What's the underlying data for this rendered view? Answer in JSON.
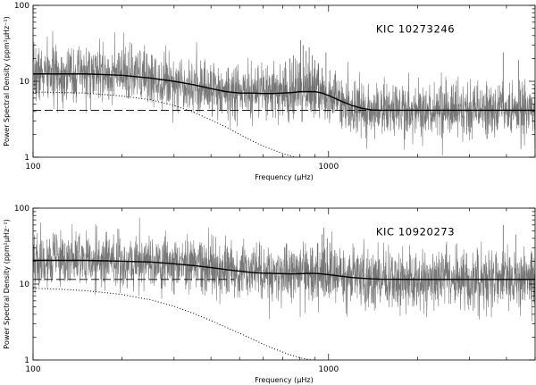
{
  "chart_data": [
    {
      "type": "line",
      "annotation": "KIC 10273246",
      "title": "",
      "xlabel": "Frequency (μHz)",
      "ylabel": "Power Spectral Density (ppm²μHz⁻¹)",
      "xscale": "log",
      "yscale": "log",
      "xlim": [
        100,
        5000
      ],
      "ylim": [
        1,
        100
      ],
      "x_ticks": [
        "100",
        "1000"
      ],
      "y_ticks": [
        "1",
        "10",
        "100"
      ],
      "annotation_position": "top-right",
      "grid": false,
      "legend": "none",
      "noise_seed": 7,
      "series": [
        {
          "style": "observed-spectrum",
          "color": "#777777",
          "x": [
            100,
            150,
            200,
            250,
            300,
            350,
            400,
            450,
            500,
            550,
            600,
            650,
            700,
            750,
            800,
            850,
            900,
            950,
            1000,
            1100,
            1200,
            1300,
            1400,
            1500,
            1700,
            2000,
            2500,
            3000,
            3500,
            4000,
            4500,
            5000
          ],
          "y": [
            12.5,
            12.5,
            12.0,
            11.0,
            10.0,
            9.0,
            8.0,
            7.3,
            7.0,
            7.0,
            6.9,
            6.9,
            7.0,
            7.1,
            7.3,
            7.3,
            7.3,
            7.0,
            6.5,
            5.5,
            4.8,
            4.4,
            4.2,
            4.15,
            4.15,
            4.15,
            4.15,
            4.15,
            4.15,
            4.15,
            4.15,
            4.15
          ]
        },
        {
          "style": "fit",
          "color": "#000000",
          "x": [
            100,
            150,
            200,
            250,
            300,
            350,
            400,
            450,
            500,
            550,
            600,
            650,
            700,
            750,
            800,
            850,
            900,
            950,
            1000,
            1100,
            1200,
            1300,
            1400,
            1500,
            1700,
            2000,
            2500,
            3000,
            3500,
            4000,
            4500,
            5000
          ],
          "y": [
            12.5,
            12.5,
            12.0,
            11.0,
            10.0,
            9.0,
            8.0,
            7.3,
            7.0,
            7.0,
            6.9,
            6.9,
            7.0,
            7.1,
            7.3,
            7.3,
            7.3,
            7.0,
            6.5,
            5.5,
            4.8,
            4.4,
            4.2,
            4.15,
            4.15,
            4.15,
            4.15,
            4.15,
            4.15,
            4.15,
            4.15,
            4.15
          ]
        },
        {
          "style": "white-noise",
          "dash": "dashed",
          "color": "#000000",
          "x": [
            100,
            5000
          ],
          "y": [
            4.15,
            4.15
          ]
        },
        {
          "style": "granulation",
          "dash": "dotted",
          "color": "#000000",
          "x": [
            100,
            120,
            150,
            200,
            250,
            300,
            350,
            400,
            450,
            500,
            550,
            600,
            650,
            700,
            750,
            790
          ],
          "y": [
            7.2,
            7.15,
            7.0,
            6.4,
            5.7,
            4.8,
            3.9,
            3.1,
            2.5,
            2.0,
            1.65,
            1.4,
            1.25,
            1.12,
            1.03,
            0.98
          ]
        }
      ],
      "peaks": {
        "x": [
          715,
          740,
          760,
          790,
          805,
          820,
          840,
          860,
          880,
          900,
          925,
          950,
          980,
          1010,
          1050,
          3900,
          4400
        ],
        "y": [
          18,
          20,
          22,
          17,
          35,
          30,
          25,
          28,
          22,
          19,
          17,
          15,
          24,
          14,
          12,
          24,
          19
        ]
      }
    },
    {
      "type": "line",
      "annotation": "KIC 10920273",
      "title": "",
      "xlabel": "Frequency (μHz)",
      "ylabel": "Power Spectral Density (ppm²μHz⁻¹)",
      "xscale": "log",
      "yscale": "log",
      "xlim": [
        100,
        5000
      ],
      "ylim": [
        1,
        100
      ],
      "x_ticks": [
        "100",
        "1000"
      ],
      "y_ticks": [
        "1",
        "10",
        "100"
      ],
      "annotation_position": "top-right",
      "grid": false,
      "legend": "none",
      "noise_seed": 19,
      "series": [
        {
          "style": "observed-spectrum",
          "color": "#777777",
          "x": [
            100,
            150,
            200,
            250,
            300,
            350,
            400,
            450,
            500,
            550,
            600,
            650,
            700,
            750,
            800,
            850,
            900,
            950,
            1000,
            1100,
            1200,
            1300,
            1400,
            1500,
            1700,
            2000,
            2500,
            3000,
            3500,
            4000,
            4500,
            5000
          ],
          "y": [
            20.5,
            20.5,
            20.0,
            19.5,
            18.5,
            17.5,
            16.5,
            15.5,
            14.8,
            14.2,
            13.9,
            13.8,
            13.7,
            13.6,
            13.7,
            13.8,
            13.8,
            13.6,
            13.3,
            12.7,
            12.2,
            11.9,
            11.7,
            11.6,
            11.55,
            11.5,
            11.5,
            11.5,
            11.5,
            11.5,
            11.5,
            11.5
          ]
        },
        {
          "style": "fit",
          "color": "#000000",
          "x": [
            100,
            150,
            200,
            250,
            300,
            350,
            400,
            450,
            500,
            550,
            600,
            650,
            700,
            750,
            800,
            850,
            900,
            950,
            1000,
            1100,
            1200,
            1300,
            1400,
            1500,
            1700,
            2000,
            2500,
            3000,
            3500,
            4000,
            4500,
            5000
          ],
          "y": [
            20.5,
            20.5,
            20.0,
            19.5,
            18.5,
            17.5,
            16.5,
            15.5,
            14.8,
            14.2,
            13.9,
            13.8,
            13.7,
            13.6,
            13.7,
            13.8,
            13.8,
            13.6,
            13.3,
            12.7,
            12.2,
            11.9,
            11.7,
            11.6,
            11.55,
            11.5,
            11.5,
            11.5,
            11.5,
            11.5,
            11.5,
            11.5
          ]
        },
        {
          "style": "white-noise",
          "dash": "dashed",
          "color": "#000000",
          "x": [
            100,
            480
          ],
          "y": [
            11.5,
            11.5
          ]
        },
        {
          "style": "granulation",
          "dash": "dotted",
          "color": "#000000",
          "x": [
            100,
            120,
            150,
            200,
            250,
            300,
            350,
            400,
            450,
            500,
            550,
            600,
            650,
            700,
            750,
            800,
            850,
            920
          ],
          "y": [
            8.8,
            8.6,
            8.2,
            7.3,
            6.2,
            5.1,
            4.1,
            3.3,
            2.7,
            2.25,
            1.9,
            1.62,
            1.42,
            1.27,
            1.15,
            1.07,
            1.02,
            0.98
          ]
        }
      ],
      "peaks": {
        "x": [
          840,
          880,
          920,
          950,
          965,
          990,
          1010,
          1050,
          1100,
          3900,
          4300
        ],
        "y": [
          25,
          30,
          35,
          45,
          55,
          40,
          35,
          28,
          22,
          60,
          45
        ]
      }
    }
  ]
}
